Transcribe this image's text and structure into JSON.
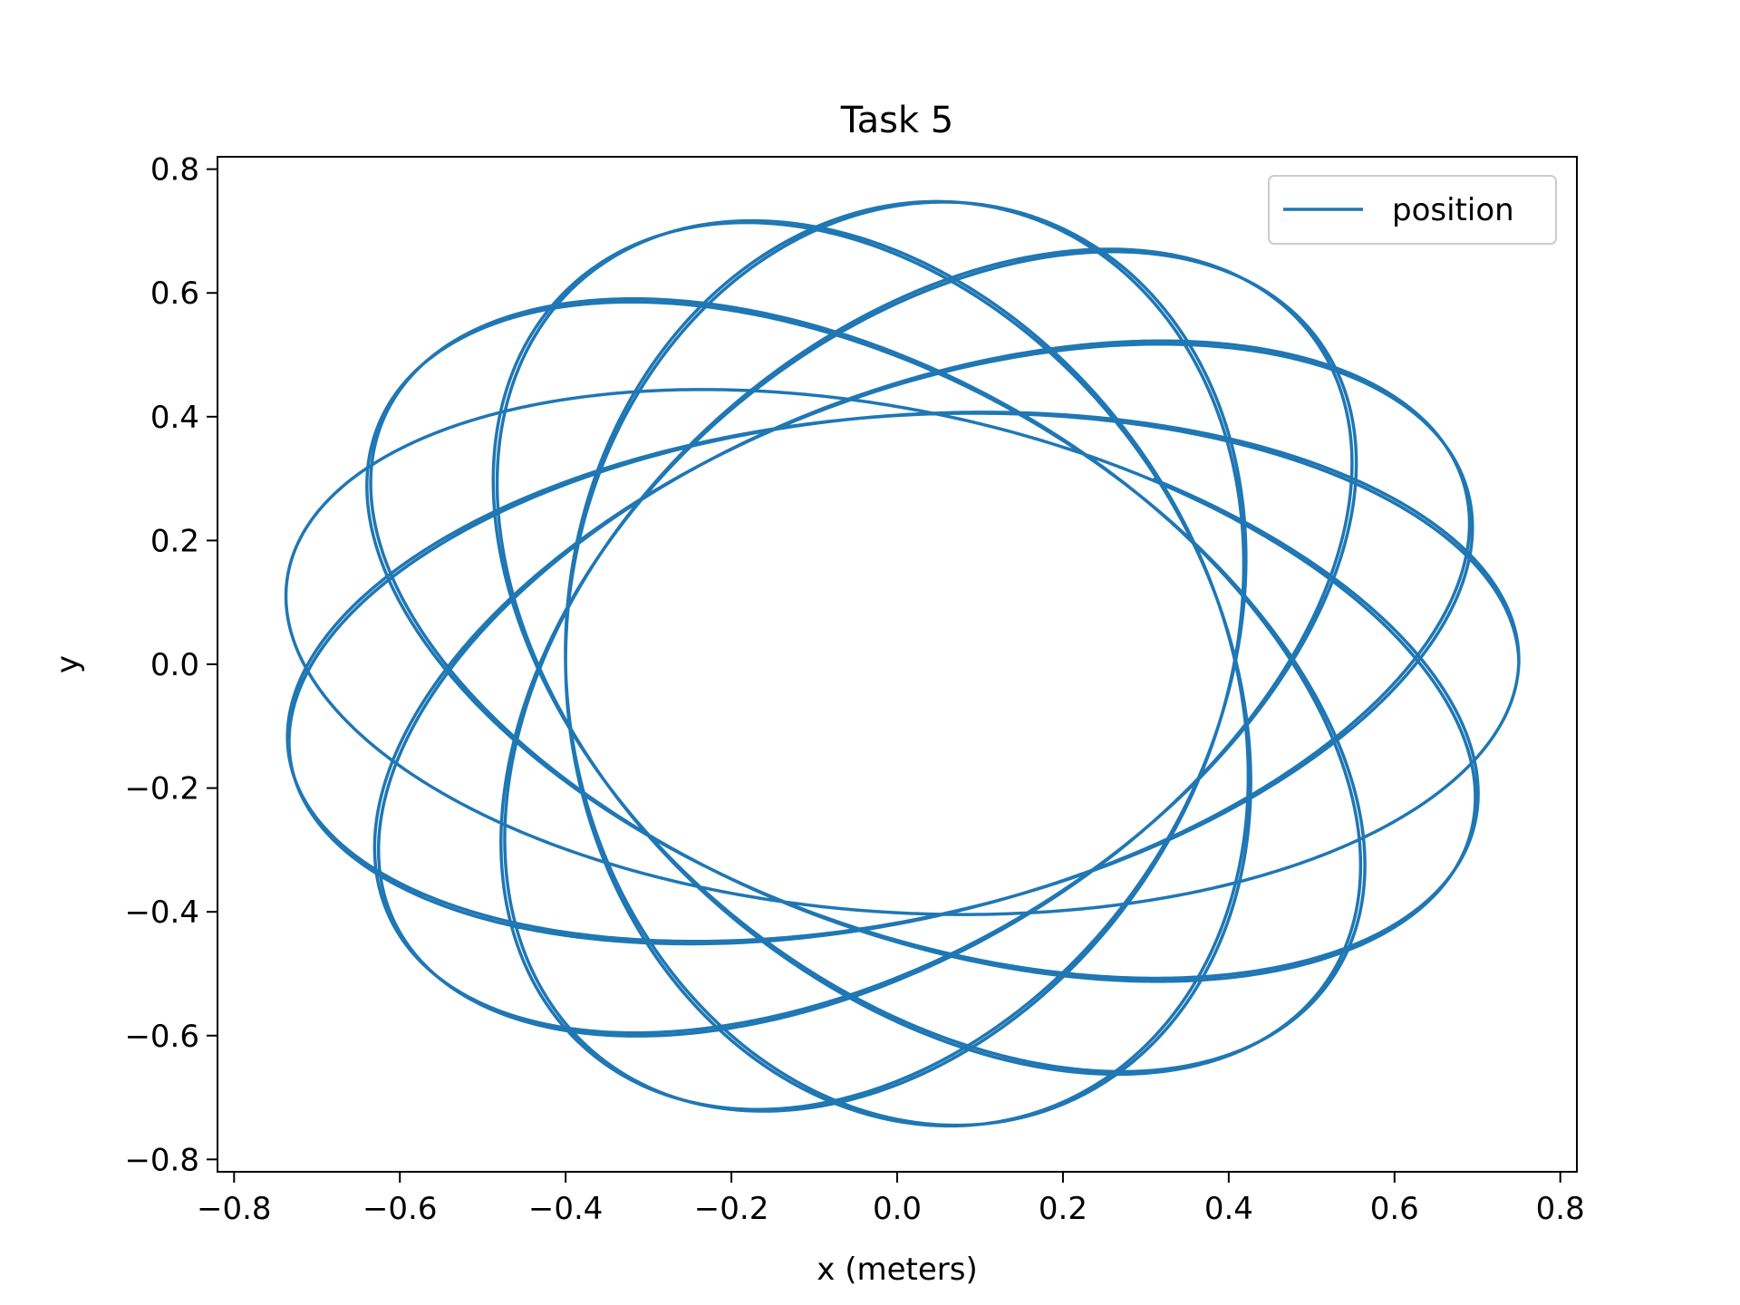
{
  "chart_data": {
    "type": "line",
    "title": "Task 5",
    "xlabel": "x (meters)",
    "ylabel": "y",
    "xlim": [
      -0.82,
      0.82
    ],
    "ylim": [
      -0.82,
      0.82
    ],
    "xticks": [
      -0.8,
      -0.6,
      -0.4,
      -0.2,
      0.0,
      0.2,
      0.4,
      0.6,
      0.8
    ],
    "yticks": [
      -0.8,
      -0.6,
      -0.4,
      -0.2,
      0.0,
      0.2,
      0.4,
      0.6,
      0.8
    ],
    "xtick_labels": [
      "−0.8",
      "−0.6",
      "−0.4",
      "−0.2",
      "0.0",
      "0.2",
      "0.4",
      "0.6",
      "0.8"
    ],
    "ytick_labels": [
      "−0.8",
      "−0.6",
      "−0.4",
      "−0.2",
      "0.0",
      "0.2",
      "0.4",
      "0.6",
      "0.8"
    ],
    "grid": false,
    "legend_position": "upper right",
    "series": [
      {
        "name": "position",
        "color": "#1f77b4",
        "curve": {
          "kind": "precessing ellipse",
          "semi_major": 0.75,
          "semi_minor": 0.4,
          "orbits": 12.21,
          "precession_turns": 0.944,
          "start": [
            0.75,
            0.0
          ],
          "end": [
            -0.4,
            0.08
          ]
        }
      }
    ]
  }
}
